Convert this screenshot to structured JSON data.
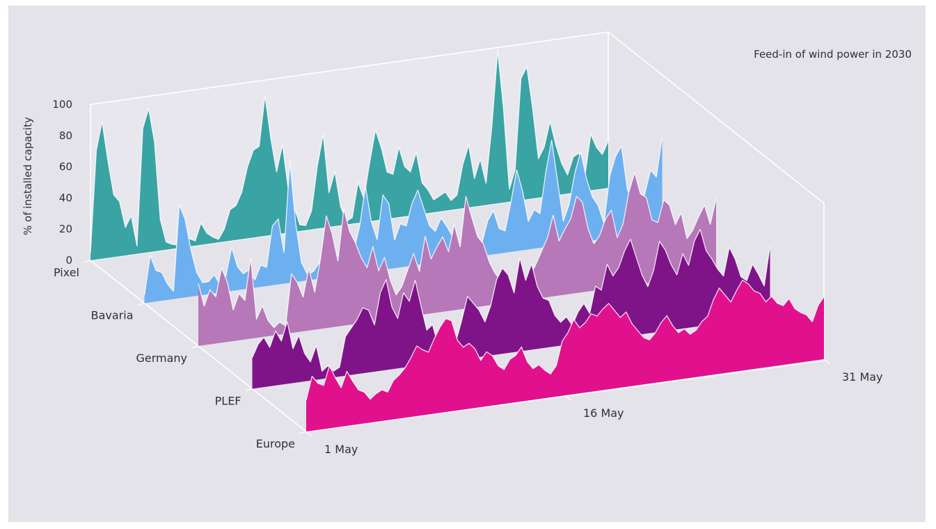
{
  "chart_data": {
    "type": "area",
    "title": "Feed-in of wind power in 2030",
    "ylabel": "% of installed capacity",
    "ylim": [
      0,
      100
    ],
    "yticks": [
      "0",
      "20",
      "40",
      "60",
      "80",
      "100"
    ],
    "x_tick_labels": [
      "1 May",
      "16 May",
      "31 May"
    ],
    "x_domain": [
      "1 May",
      "31 May"
    ],
    "series": [
      {
        "name": "Pixel",
        "color": "#3aa3a4",
        "values": [
          5,
          70,
          88,
          62,
          40,
          35,
          18,
          25,
          5,
          80,
          92,
          70,
          20,
          5,
          3,
          2,
          10,
          5,
          3,
          14,
          7,
          4,
          2,
          8,
          20,
          22,
          30,
          46,
          56,
          58,
          90,
          62,
          40,
          57,
          28,
          16,
          4,
          3,
          12,
          40,
          60,
          22,
          35,
          12,
          2,
          4,
          26,
          15,
          38,
          58,
          46,
          30,
          28,
          45,
          32,
          28,
          40,
          20,
          15,
          8,
          10,
          12,
          6,
          9,
          28,
          40,
          18,
          30,
          14,
          50,
          98,
          60,
          8,
          20,
          78,
          85,
          58,
          25,
          32,
          48,
          32,
          20,
          12,
          23,
          25,
          10,
          36,
          27,
          22,
          30
        ]
      },
      {
        "name": "Bavaria",
        "color": "#6db0ef",
        "values": [
          5,
          30,
          20,
          18,
          10,
          5,
          60,
          50,
          30,
          15,
          8,
          8,
          12,
          5,
          10,
          28,
          15,
          10,
          12,
          5,
          14,
          12,
          38,
          42,
          20,
          78,
          38,
          12,
          4,
          5,
          10,
          25,
          18,
          14,
          10,
          5,
          15,
          30,
          55,
          32,
          20,
          48,
          42,
          18,
          28,
          26,
          40,
          48,
          36,
          24,
          20,
          28,
          22,
          15,
          10,
          12,
          8,
          15,
          8,
          22,
          28,
          16,
          14,
          32,
          52,
          38,
          18,
          25,
          22,
          48,
          68,
          42,
          15,
          25,
          45,
          58,
          40,
          28,
          22,
          10,
          40,
          52,
          58,
          30,
          20,
          12,
          25,
          40,
          35,
          60
        ]
      },
      {
        "name": "Germany",
        "color": "#b678b8",
        "values": [
          40,
          25,
          35,
          30,
          48,
          38,
          20,
          30,
          25,
          52,
          12,
          20,
          10,
          5,
          8,
          5,
          38,
          32,
          22,
          40,
          24,
          45,
          72,
          60,
          42,
          75,
          60,
          52,
          42,
          35,
          48,
          32,
          40,
          25,
          15,
          20,
          30,
          40,
          28,
          50,
          35,
          42,
          48,
          38,
          55,
          40,
          72,
          58,
          45,
          40,
          28,
          20,
          15,
          12,
          5,
          8,
          6,
          15,
          22,
          30,
          38,
          52,
          35,
          42,
          48,
          62,
          58,
          40,
          30,
          35,
          45,
          50,
          32,
          40,
          60,
          72,
          58,
          55,
          40,
          38,
          52,
          48,
          35,
          42,
          25,
          30,
          38,
          45,
          32,
          48
        ]
      },
      {
        "name": "PLEF",
        "color": "#7e1488",
        "values": [
          20,
          28,
          32,
          25,
          35,
          28,
          40,
          22,
          30,
          18,
          12,
          22,
          5,
          8,
          4,
          6,
          25,
          30,
          35,
          42,
          40,
          30,
          50,
          58,
          40,
          32,
          48,
          42,
          55,
          38,
          22,
          25,
          10,
          5,
          8,
          12,
          25,
          40,
          35,
          30,
          22,
          32,
          48,
          55,
          50,
          38,
          60,
          45,
          55,
          40,
          32,
          30,
          20,
          15,
          18,
          12,
          20,
          25,
          18,
          35,
          32,
          48,
          40,
          45,
          55,
          62,
          50,
          38,
          30,
          40,
          58,
          52,
          42,
          35,
          48,
          40,
          55,
          62,
          48,
          42,
          35,
          30,
          48,
          40,
          28,
          25,
          35,
          28,
          20,
          45
        ]
      },
      {
        "name": "Europe",
        "color": "#e1118e",
        "values": [
          20,
          35,
          30,
          28,
          40,
          32,
          25,
          35,
          28,
          22,
          20,
          15,
          18,
          20,
          18,
          25,
          28,
          32,
          38,
          45,
          42,
          40,
          48,
          55,
          60,
          58,
          45,
          40,
          42,
          38,
          30,
          35,
          32,
          25,
          22,
          28,
          30,
          35,
          25,
          20,
          22,
          18,
          15,
          20,
          35,
          40,
          48,
          42,
          45,
          50,
          48,
          52,
          55,
          50,
          45,
          48,
          40,
          35,
          30,
          28,
          32,
          38,
          42,
          35,
          30,
          32,
          28,
          30,
          35,
          38,
          48,
          55,
          50,
          45,
          52,
          58,
          55,
          50,
          48,
          42,
          45,
          40,
          38,
          42,
          35,
          32,
          30,
          25,
          35,
          40
        ]
      }
    ],
    "grid": false,
    "legend": "none"
  }
}
